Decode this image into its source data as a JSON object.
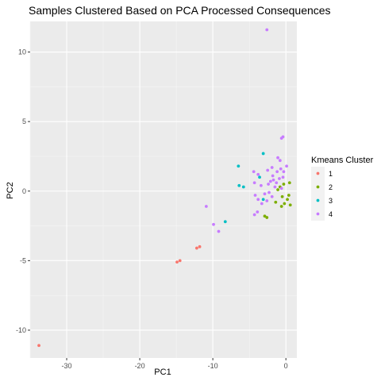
{
  "chart_data": {
    "type": "scatter",
    "title": "Samples Clustered Based on PCA Processed Consequences",
    "xlabel": "PC1",
    "ylabel": "PC2",
    "xlim": [
      -35,
      1.5
    ],
    "ylim": [
      -12,
      12.2
    ],
    "x_ticks": [
      -30,
      -20,
      -10,
      0
    ],
    "x_tick_labels": [
      "-30",
      "-20",
      "-10",
      "0"
    ],
    "y_ticks": [
      -10,
      -5,
      0,
      5,
      10
    ],
    "y_tick_labels": [
      "-10",
      "-5",
      "0",
      "5",
      "10"
    ],
    "grid": true,
    "legend": {
      "title": "Kmeans Cluster",
      "placement": "right"
    },
    "series": [
      {
        "name": "1",
        "color": "#F8766D",
        "points": [
          [
            -33.8,
            -11.1
          ],
          [
            -14.9,
            -5.1
          ],
          [
            -14.5,
            -5.0
          ],
          [
            -12.2,
            -4.1
          ],
          [
            -11.8,
            -4.0
          ]
        ]
      },
      {
        "name": "2",
        "color": "#7CAE00",
        "points": [
          [
            -2.9,
            -1.8
          ],
          [
            -2.6,
            -1.9
          ],
          [
            -1.4,
            -0.8
          ],
          [
            -0.8,
            0.3
          ],
          [
            -0.3,
            0.5
          ],
          [
            0.5,
            0.6
          ],
          [
            -0.5,
            -0.4
          ],
          [
            0.4,
            -0.3
          ],
          [
            -0.2,
            -0.9
          ],
          [
            0.6,
            -1.0
          ],
          [
            -0.6,
            -1.1
          ],
          [
            0.2,
            -0.6
          ],
          [
            -1.1,
            0.1
          ]
        ]
      },
      {
        "name": "3",
        "color": "#00BFC4",
        "points": [
          [
            -6.5,
            1.8
          ],
          [
            -6.4,
            0.4
          ],
          [
            -5.8,
            0.3
          ],
          [
            -3.1,
            2.7
          ],
          [
            -3.6,
            1.0
          ],
          [
            -3.1,
            -0.6
          ],
          [
            -8.3,
            -2.2
          ]
        ]
      },
      {
        "name": "4",
        "color": "#C77CFF",
        "points": [
          [
            -2.6,
            11.6
          ],
          [
            -0.4,
            3.9
          ],
          [
            -0.6,
            3.8
          ],
          [
            -4.4,
            1.4
          ],
          [
            -3.8,
            1.2
          ],
          [
            -2.5,
            1.5
          ],
          [
            -1.9,
            1.7
          ],
          [
            -1.8,
            1.1
          ],
          [
            -1.2,
            1.4
          ],
          [
            -1.1,
            2.4
          ],
          [
            -0.8,
            2.2
          ],
          [
            -0.7,
            1.6
          ],
          [
            -0.3,
            1.4
          ],
          [
            0.1,
            1.8
          ],
          [
            -4.3,
            0.6
          ],
          [
            -3.4,
            0.4
          ],
          [
            -2.4,
            0.5
          ],
          [
            -2.1,
            0.7
          ],
          [
            -1.7,
            0.8
          ],
          [
            -1.3,
            0.6
          ],
          [
            -0.9,
            0.9
          ],
          [
            -0.4,
            1.0
          ],
          [
            -4.2,
            -0.3
          ],
          [
            -3.8,
            -0.6
          ],
          [
            -2.9,
            -0.2
          ],
          [
            -2.3,
            -0.1
          ],
          [
            -1.9,
            -0.4
          ],
          [
            -3.3,
            -0.9
          ],
          [
            -3.9,
            -1.5
          ],
          [
            -4.3,
            -1.7
          ],
          [
            -2.6,
            -0.7
          ],
          [
            -10.9,
            -1.1
          ],
          [
            -9.9,
            -2.4
          ],
          [
            -9.2,
            -2.9
          ],
          [
            -1.5,
            0.3
          ],
          [
            -0.6,
            0.2
          ]
        ]
      }
    ]
  }
}
